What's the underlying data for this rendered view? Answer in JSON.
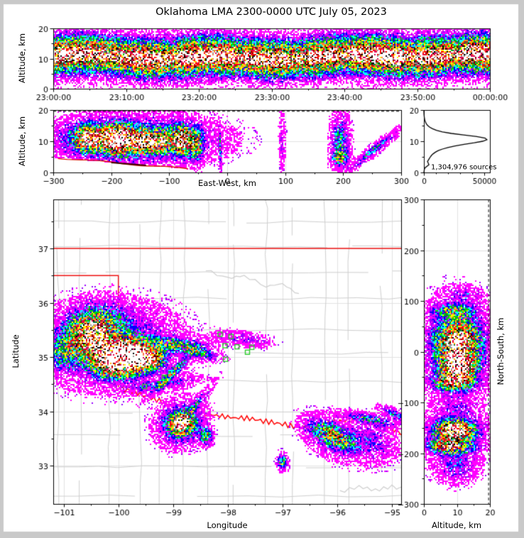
{
  "title": "Oklahoma LMA 2300-0000 UTC July 05, 2023",
  "palette": {
    "density_low_to_high": [
      "#ff00ff",
      "#9900ff",
      "#0000ff",
      "#00ffff",
      "#00dd00",
      "#117744",
      "#ffff00",
      "#ffaa00",
      "#ff7744",
      "#ff0000",
      "#dd0055",
      "#880000",
      "#000000",
      "#999999",
      "#ffffff"
    ],
    "state_border": "#ee1111",
    "red_river": "#ff0000",
    "county": "#cfcfcf",
    "grid": "#e2e2e2",
    "station": "#2ecc2e",
    "frame": "#000000",
    "background": "#ffffff",
    "window_border": "#c9c9c9"
  },
  "cluster_format": "[x, y, radius_x, radius_y, rotation_deg, peak_strength_0to1]",
  "chart_data": [
    {
      "id": "time_height",
      "type": "heatmap",
      "ylabel": "Altitude, km",
      "xlim_minutes": [
        0,
        60
      ],
      "ylim": [
        0,
        20
      ],
      "xticks": {
        "vals": [
          0,
          10,
          20,
          30,
          40,
          50,
          60
        ],
        "labels": [
          "23:00:00",
          "23:10:00",
          "23:20:00",
          "23:30:00",
          "23:40:00",
          "23:50:00",
          "00:00:00"
        ]
      },
      "yticks": {
        "vals": [
          0,
          10,
          20
        ],
        "labels": [
          "0",
          "10",
          "20"
        ]
      },
      "band_center_km": 10.7,
      "core_segments_min": [
        [
          0,
          6,
          1.0
        ],
        [
          6.5,
          9.5,
          0.88
        ],
        [
          11,
          15,
          1.0
        ],
        [
          17,
          25,
          1.05
        ],
        [
          27,
          32,
          1.0
        ],
        [
          35,
          39,
          0.98
        ],
        [
          41,
          48,
          1.08
        ],
        [
          50,
          54,
          1.02
        ],
        [
          56,
          60,
          1.06
        ]
      ],
      "baseline_strength": 0.85
    },
    {
      "id": "ew_height",
      "type": "heatmap",
      "xlabel": "East-West, km",
      "ylabel": "Altitude, km",
      "xlim": [
        -300,
        300
      ],
      "ylim": [
        0,
        20
      ],
      "xticks": {
        "vals": [
          -300,
          -200,
          -100,
          0,
          100,
          200,
          300
        ],
        "labels": [
          "−300",
          "−200",
          "−100",
          "0",
          "100",
          "200",
          "300"
        ]
      },
      "yticks": {
        "vals": [
          0,
          10,
          20
        ],
        "labels": [
          "0",
          "10",
          "20"
        ]
      },
      "clusters": [
        [
          -165,
          10.5,
          118,
          6.2,
          0,
          0.4
        ],
        [
          -238,
          11,
          26,
          3.8,
          0,
          0.8
        ],
        [
          -188,
          10.5,
          24,
          4.2,
          0,
          1.0
        ],
        [
          -150,
          9.8,
          13,
          3.2,
          0,
          0.8
        ],
        [
          -128,
          9.8,
          10,
          3,
          0,
          0.78
        ],
        [
          -110,
          9.8,
          8,
          2.8,
          0,
          0.75
        ],
        [
          -80,
          10.3,
          18,
          4.2,
          0,
          0.82
        ],
        [
          -55,
          9,
          12,
          5,
          0,
          0.45
        ],
        [
          195,
          10,
          14,
          7.5,
          0,
          0.3
        ],
        [
          195,
          4.8,
          13,
          2,
          0,
          0.42
        ],
        [
          -12,
          8,
          2.2,
          6,
          12,
          0.3
        ],
        [
          95,
          10,
          5,
          8,
          0,
          0.12
        ],
        [
          255,
          7.5,
          42,
          1.6,
          8,
          0.26
        ]
      ],
      "lower_cutoff": {
        "x0": -300,
        "alt0": 4.8,
        "x1": -60,
        "alt1": 1.0
      },
      "dashed_alt_km": 19.6
    },
    {
      "id": "altitude_histogram",
      "type": "line",
      "annotation": "1,304,976 sources",
      "xlim": [
        0,
        55000
      ],
      "ylim": [
        0,
        20
      ],
      "xticks": {
        "vals": [
          0,
          50000
        ],
        "labels": [
          "0",
          "50000"
        ]
      },
      "yticks": {
        "vals": [
          0,
          10,
          20
        ],
        "labels": [
          "0",
          "10",
          "20"
        ]
      },
      "profile_alt_km": [
        0,
        0.5,
        1,
        1.5,
        2,
        2.5,
        3,
        3.5,
        4,
        4.5,
        5,
        5.5,
        6,
        6.5,
        7,
        7.5,
        8,
        8.5,
        9,
        9.5,
        10,
        10.5,
        11,
        11.5,
        12,
        12.5,
        13,
        13.5,
        14,
        14.5,
        15,
        15.5,
        16,
        16.5,
        17,
        17.5,
        18,
        18.5,
        19,
        19.5,
        20
      ],
      "profile_counts": [
        0,
        200,
        400,
        900,
        2600,
        4200,
        3600,
        3000,
        3800,
        4600,
        5400,
        6400,
        7800,
        9600,
        12000,
        15500,
        20000,
        26000,
        33500,
        42000,
        49000,
        52500,
        51000,
        44000,
        33000,
        23000,
        15500,
        10500,
        7200,
        4900,
        3300,
        2200,
        1500,
        1000,
        650,
        420,
        260,
        150,
        80,
        30,
        0
      ]
    },
    {
      "id": "plan_view_map",
      "type": "heatmap",
      "xlabel": "Longitude",
      "ylabel": "Latitude",
      "xlim": [
        -101.19,
        -94.83
      ],
      "ylim": [
        32.3,
        37.9
      ],
      "xticks": {
        "vals": [
          -101,
          -100,
          -99,
          -98,
          -97,
          -96,
          -95
        ],
        "labels": [
          "−101",
          "−100",
          "−99",
          "−98",
          "−97",
          "−96",
          "−95"
        ]
      },
      "yticks": {
        "vals": [
          33,
          34,
          35,
          36,
          37
        ],
        "labels": [
          "33",
          "34",
          "35",
          "36",
          "37"
        ]
      },
      "grid_deg": 1,
      "clusters": [
        [
          -100.15,
          35.22,
          1.0,
          0.6,
          0,
          0.32
        ],
        [
          -100.52,
          35.4,
          0.38,
          0.32,
          0,
          0.72
        ],
        [
          -100.2,
          35.02,
          0.3,
          0.26,
          0,
          0.75
        ],
        [
          -99.82,
          35.08,
          0.3,
          0.24,
          0,
          0.95
        ],
        [
          -99.6,
          34.95,
          0.24,
          0.2,
          0,
          0.9
        ],
        [
          -99.33,
          34.97,
          0.18,
          0.16,
          0,
          0.62
        ],
        [
          -100.0,
          34.78,
          0.35,
          0.18,
          0,
          0.45
        ],
        [
          -100.35,
          35.72,
          0.45,
          0.28,
          0,
          0.22
        ],
        [
          -101.0,
          35.1,
          0.3,
          0.3,
          0,
          0.25
        ],
        [
          -98.95,
          35.22,
          0.5,
          0.13,
          -5,
          0.35
        ],
        [
          -98.5,
          35.08,
          0.3,
          0.1,
          -15,
          0.28
        ],
        [
          -99.0,
          34.72,
          0.45,
          0.07,
          45,
          0.4
        ],
        [
          -99.2,
          34.5,
          0.6,
          0.1,
          8,
          0.18
        ],
        [
          -98.85,
          33.78,
          0.2,
          0.18,
          0,
          0.78
        ],
        [
          -98.85,
          33.78,
          0.38,
          0.33,
          30,
          0.35
        ],
        [
          -98.62,
          34.08,
          0.45,
          0.07,
          50,
          0.22
        ],
        [
          -98.4,
          33.56,
          0.11,
          0.14,
          0,
          0.48
        ],
        [
          -96.08,
          33.56,
          0.4,
          0.17,
          -25,
          0.45
        ],
        [
          -96.0,
          33.5,
          0.55,
          0.3,
          -25,
          0.18
        ],
        [
          -95.4,
          33.85,
          0.45,
          0.09,
          -12,
          0.28
        ],
        [
          -94.95,
          33.95,
          0.25,
          0.08,
          -25,
          0.26
        ],
        [
          -95.3,
          33.45,
          0.4,
          0.28,
          -40,
          0.14
        ],
        [
          -97.0,
          33.08,
          0.08,
          0.13,
          0,
          0.42
        ],
        [
          -97.7,
          35.33,
          0.45,
          0.12,
          -8,
          0.13
        ]
      ],
      "stations_lon_lat": [
        [
          -98.14,
          35.42
        ],
        [
          -97.94,
          35.38
        ],
        [
          -98.05,
          35.21
        ],
        [
          -97.83,
          35.19
        ],
        [
          -97.64,
          35.09
        ],
        [
          -97.56,
          35.18
        ],
        [
          -98.04,
          34.96
        ],
        [
          -99.16,
          34.63
        ],
        [
          -99.52,
          34.46
        ]
      ],
      "oklahoma_border": {
        "north_lat": 37.0,
        "panhandle_lat": 36.5,
        "west_lon": -100.0,
        "red_river_lon_lat": [
          [
            -100.0,
            34.45
          ],
          [
            -99.8,
            34.38
          ],
          [
            -99.55,
            34.3
          ],
          [
            -99.3,
            34.21
          ],
          [
            -99.05,
            34.12
          ],
          [
            -98.8,
            34.07
          ],
          [
            -98.55,
            34.0
          ],
          [
            -98.3,
            33.94
          ],
          [
            -98.05,
            33.9
          ],
          [
            -97.8,
            33.88
          ],
          [
            -97.55,
            33.86
          ],
          [
            -97.3,
            33.82
          ],
          [
            -97.05,
            33.78
          ],
          [
            -96.8,
            33.73
          ],
          [
            -96.55,
            33.7
          ],
          [
            -96.3,
            33.76
          ],
          [
            -96.05,
            33.8
          ],
          [
            -95.8,
            33.84
          ],
          [
            -95.55,
            33.86
          ],
          [
            -95.3,
            33.8
          ],
          [
            -95.05,
            33.7
          ],
          [
            -94.83,
            33.6
          ]
        ]
      },
      "gray_rivers": [
        [
          [
            -98.4,
            36.6
          ],
          [
            -98.0,
            36.45
          ],
          [
            -97.7,
            36.5
          ],
          [
            -97.3,
            36.3
          ],
          [
            -97.0,
            36.35
          ],
          [
            -96.7,
            36.15
          ]
        ],
        [
          [
            -95.95,
            32.52
          ],
          [
            -95.6,
            32.62
          ],
          [
            -95.3,
            32.55
          ],
          [
            -95.0,
            32.62
          ],
          [
            -94.83,
            32.58
          ]
        ]
      ]
    },
    {
      "id": "ns_height",
      "type": "heatmap",
      "xlabel": "Altitude, km",
      "ylabel": "North-South, km",
      "xlim": [
        0,
        20
      ],
      "ylim": [
        -300,
        300
      ],
      "xticks": {
        "vals": [
          0,
          10,
          20
        ],
        "labels": [
          "0",
          "10",
          "20"
        ]
      },
      "yticks": {
        "vals": [
          300,
          200,
          100,
          0,
          -100,
          -200,
          -300
        ],
        "labels": [
          "300",
          "200",
          "100",
          "0",
          "−100",
          "−200",
          "−300"
        ]
      },
      "clusters": [
        [
          10,
          5,
          8.5,
          80,
          0,
          0.32
        ],
        [
          10.5,
          22,
          6,
          36,
          0,
          0.72
        ],
        [
          10.5,
          -28,
          4.8,
          26,
          0,
          0.95
        ],
        [
          9,
          -60,
          5.5,
          16,
          0,
          0.62
        ],
        [
          9,
          80,
          6,
          13,
          0,
          0.38
        ],
        [
          9.5,
          -165,
          7.5,
          36,
          0,
          0.4
        ],
        [
          9.5,
          -153,
          5,
          16,
          0,
          0.82
        ],
        [
          7.5,
          -186,
          5.5,
          13,
          0,
          0.58
        ],
        [
          10,
          -228,
          6,
          28,
          0,
          0.16
        ],
        [
          12,
          112,
          5,
          14,
          0,
          0.12
        ],
        [
          10,
          -110,
          6,
          18,
          0,
          0.09
        ]
      ],
      "dashed_alt_km": 19.6
    }
  ]
}
